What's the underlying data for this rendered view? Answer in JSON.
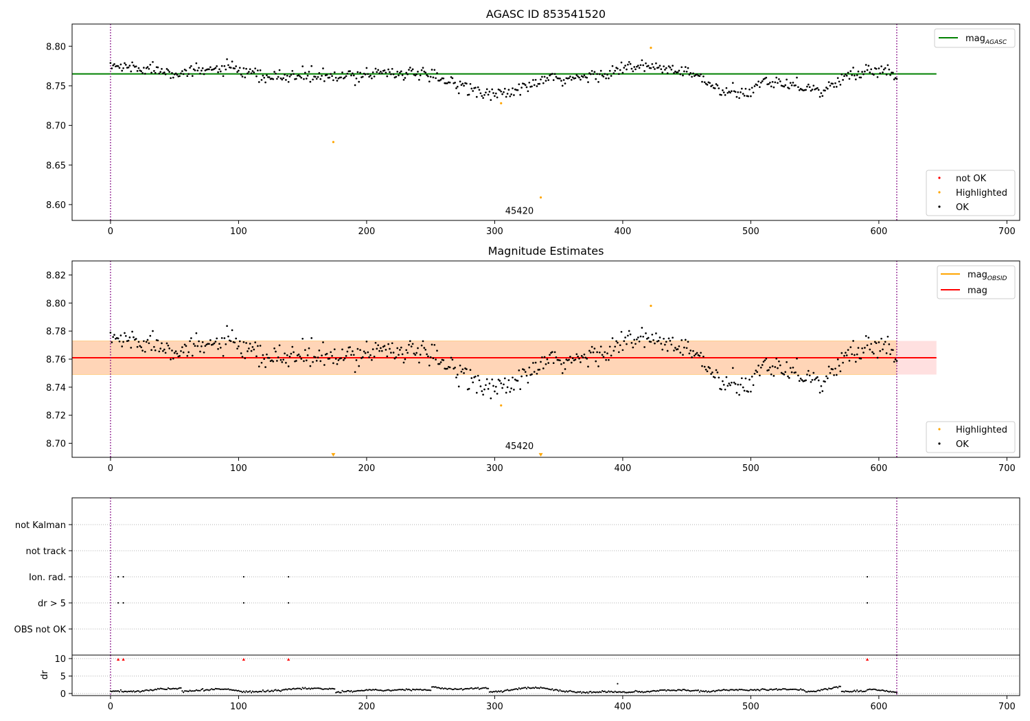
{
  "chart_data": [
    {
      "type": "scatter",
      "title": "AGASC ID 853541520",
      "xlim": [
        -30,
        710
      ],
      "ylim": [
        8.58,
        8.828
      ],
      "xticks": [
        0,
        100,
        200,
        300,
        400,
        500,
        600,
        700
      ],
      "yticks": [
        8.6,
        8.65,
        8.7,
        8.75,
        8.8
      ],
      "ytick_labels": [
        "8.60",
        "8.65",
        "8.70",
        "8.75",
        "8.80"
      ],
      "vlines": [
        0,
        614
      ],
      "hline": {
        "name": "mag",
        "subscript": "AGASC",
        "y": 8.765,
        "x_range": [
          -30,
          645
        ],
        "color": "#008000"
      },
      "annotation": {
        "text": "45420",
        "x": 307,
        "y": 8.589
      },
      "legend_lines": {
        "placement": "top-right",
        "entries": [
          {
            "name": "mag",
            "subscript": "AGASC",
            "color": "#008000"
          }
        ]
      },
      "legend_points": {
        "placement": "bottom-right",
        "entries": [
          {
            "name": "not OK",
            "color": "#ff0000"
          },
          {
            "name": "Highlighted",
            "color": "#ffa500"
          },
          {
            "name": "OK",
            "color": "#000000"
          }
        ]
      },
      "highlighted": [
        [
          174,
          8.679
        ],
        [
          305,
          8.728
        ],
        [
          336,
          8.609
        ],
        [
          422,
          8.798
        ]
      ],
      "curve": {
        "x_range": [
          0,
          614
        ],
        "points": 615,
        "noise": 0.0075,
        "offset": 0.0
      },
      "trend": [
        [
          0,
          8.775
        ],
        [
          30,
          8.772
        ],
        [
          60,
          8.766
        ],
        [
          90,
          8.773
        ],
        [
          120,
          8.76
        ],
        [
          150,
          8.763
        ],
        [
          180,
          8.76
        ],
        [
          210,
          8.768
        ],
        [
          240,
          8.765
        ],
        [
          260,
          8.757
        ],
        [
          280,
          8.748
        ],
        [
          300,
          8.738
        ],
        [
          320,
          8.745
        ],
        [
          340,
          8.758
        ],
        [
          360,
          8.758
        ],
        [
          380,
          8.764
        ],
        [
          400,
          8.772
        ],
        [
          420,
          8.774
        ],
        [
          440,
          8.77
        ],
        [
          460,
          8.762
        ],
        [
          470,
          8.748
        ],
        [
          490,
          8.738
        ],
        [
          500,
          8.742
        ],
        [
          510,
          8.758
        ],
        [
          540,
          8.75
        ],
        [
          555,
          8.742
        ],
        [
          575,
          8.762
        ],
        [
          600,
          8.772
        ],
        [
          614,
          8.762
        ]
      ]
    },
    {
      "type": "scatter",
      "title": "Magnitude Estimates",
      "xlim": [
        -30,
        710
      ],
      "ylim": [
        8.69,
        8.83
      ],
      "xticks": [
        0,
        100,
        200,
        300,
        400,
        500,
        600,
        700
      ],
      "yticks": [
        8.7,
        8.72,
        8.74,
        8.76,
        8.78,
        8.8,
        8.82
      ],
      "ytick_labels": [
        "8.70",
        "8.72",
        "8.74",
        "8.76",
        "8.78",
        "8.80",
        "8.82"
      ],
      "vlines": [
        0,
        614
      ],
      "mag_line": {
        "y": 8.761,
        "x_range": [
          -30,
          645
        ],
        "color": "#ff0000"
      },
      "band_obsid": {
        "y_range": [
          8.749,
          8.773
        ],
        "x_range": [
          -30,
          614
        ],
        "color": "#ffa500"
      },
      "band_mag": {
        "y_range": [
          8.749,
          8.773
        ],
        "x_range": [
          -30,
          645
        ],
        "color": "#ff0000"
      },
      "annotation": {
        "text": "45420",
        "x": 307,
        "y": 8.695
      },
      "legend_lines": {
        "placement": "top-right",
        "entries": [
          {
            "name": "mag",
            "subscript": "OBSID",
            "color": "#ffa500"
          },
          {
            "name": "mag",
            "subscript": "",
            "color": "#ff0000"
          }
        ]
      },
      "legend_points": {
        "placement": "bottom-right",
        "entries": [
          {
            "name": "Highlighted",
            "color": "#ffa500"
          },
          {
            "name": "OK",
            "color": "#000000"
          }
        ]
      },
      "highlighted": [
        [
          305,
          8.727
        ],
        [
          422,
          8.798
        ]
      ],
      "offscale_markers": [
        [
          174,
          8.6915
        ],
        [
          336,
          8.6915
        ]
      ],
      "curve": {
        "x_range": [
          0,
          614
        ],
        "points": 615,
        "noise": 0.0075,
        "offset": 0.0
      },
      "trend": [
        [
          0,
          8.775
        ],
        [
          30,
          8.772
        ],
        [
          60,
          8.766
        ],
        [
          90,
          8.773
        ],
        [
          120,
          8.76
        ],
        [
          150,
          8.763
        ],
        [
          180,
          8.76
        ],
        [
          210,
          8.768
        ],
        [
          240,
          8.765
        ],
        [
          260,
          8.757
        ],
        [
          280,
          8.748
        ],
        [
          300,
          8.738
        ],
        [
          320,
          8.745
        ],
        [
          340,
          8.758
        ],
        [
          360,
          8.758
        ],
        [
          380,
          8.764
        ],
        [
          400,
          8.772
        ],
        [
          420,
          8.774
        ],
        [
          440,
          8.77
        ],
        [
          460,
          8.762
        ],
        [
          470,
          8.748
        ],
        [
          490,
          8.738
        ],
        [
          500,
          8.742
        ],
        [
          510,
          8.758
        ],
        [
          540,
          8.75
        ],
        [
          555,
          8.742
        ],
        [
          575,
          8.762
        ],
        [
          600,
          8.772
        ],
        [
          614,
          8.762
        ]
      ]
    },
    {
      "type": "scatter",
      "title": "",
      "xlim": [
        -30,
        710
      ],
      "categories": [
        "not Kalman",
        "not track",
        "Ion. rad.",
        "dr > 5",
        "OBS not OK"
      ],
      "vlines": [
        0,
        614
      ],
      "flags": {
        "Ion. rad.": [
          6,
          10,
          104,
          139,
          591
        ],
        "dr > 5": [
          6,
          10,
          104,
          139,
          591
        ]
      }
    },
    {
      "type": "scatter",
      "title": "",
      "xlim": [
        -30,
        710
      ],
      "ylim": [
        -0.6,
        11
      ],
      "xticks": [
        0,
        100,
        200,
        300,
        400,
        500,
        600,
        700
      ],
      "yticks": [
        0,
        5,
        10
      ],
      "ylabel": "dr",
      "vlines": [
        0,
        614
      ],
      "clipped_markers": [
        [
          6,
          9.8
        ],
        [
          10,
          9.8
        ],
        [
          104,
          9.8
        ],
        [
          139,
          9.8
        ],
        [
          591,
          9.8
        ]
      ],
      "outliers": [
        [
          396,
          2.8
        ]
      ],
      "dr_trend": [
        [
          0,
          0.6
        ],
        [
          20,
          0.6
        ],
        [
          40,
          1.3
        ],
        [
          55,
          1.5
        ],
        [
          56,
          0.5
        ],
        [
          70,
          0.9
        ],
        [
          85,
          1.4
        ],
        [
          100,
          0.7
        ],
        [
          108,
          0.4
        ],
        [
          125,
          0.7
        ],
        [
          135,
          1.0
        ],
        [
          145,
          1.4
        ],
        [
          175,
          1.3
        ],
        [
          176,
          0.3
        ],
        [
          190,
          0.7
        ],
        [
          205,
          1.1
        ],
        [
          215,
          0.9
        ],
        [
          240,
          1.2
        ],
        [
          250,
          0.9
        ],
        [
          251,
          1.8
        ],
        [
          270,
          1.2
        ],
        [
          295,
          1.6
        ],
        [
          296,
          0.3
        ],
        [
          320,
          1.4
        ],
        [
          335,
          1.7
        ],
        [
          355,
          0.6
        ],
        [
          370,
          0.3
        ],
        [
          385,
          0.5
        ],
        [
          400,
          0.4
        ],
        [
          420,
          0.5
        ],
        [
          430,
          0.9
        ],
        [
          450,
          0.9
        ],
        [
          470,
          0.6
        ],
        [
          480,
          1.1
        ],
        [
          500,
          1.0
        ],
        [
          520,
          1.1
        ],
        [
          540,
          1.2
        ],
        [
          545,
          0.4
        ],
        [
          570,
          2.0
        ],
        [
          571,
          0.5
        ],
        [
          590,
          0.7
        ],
        [
          592,
          1.3
        ],
        [
          614,
          0.3
        ]
      ]
    }
  ]
}
